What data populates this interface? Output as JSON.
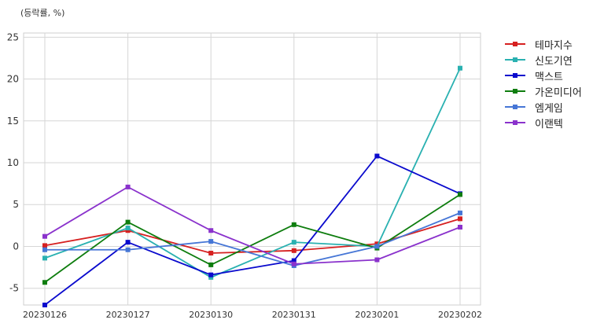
{
  "unit_label": "(등락률, %)",
  "chart_data": {
    "type": "line",
    "x": [
      "20230126",
      "20230127",
      "20230130",
      "20230131",
      "20230201",
      "20230202"
    ],
    "ylim": [
      -7,
      25.5
    ],
    "yticks": [
      -5,
      0,
      5,
      10,
      15,
      20,
      25
    ],
    "grid": true,
    "legend_position": "top-right, outside plot",
    "series": [
      {
        "name": "테마지수",
        "color": "#d62020",
        "values": [
          0.1,
          1.9,
          -0.8,
          -0.5,
          0.3,
          3.3
        ]
      },
      {
        "name": "신도기연",
        "color": "#2ab1b1",
        "values": [
          -1.4,
          2.2,
          -3.7,
          0.5,
          0.0,
          21.3
        ]
      },
      {
        "name": "맥스트",
        "color": "#0a0acd",
        "values": [
          -7.0,
          0.5,
          -3.4,
          -1.7,
          10.8,
          6.3
        ]
      },
      {
        "name": "가온미디어",
        "color": "#0e7d0e",
        "values": [
          -4.3,
          2.9,
          -2.2,
          2.6,
          -0.2,
          6.2
        ]
      },
      {
        "name": "엠게임",
        "color": "#4676d6",
        "values": [
          -0.4,
          -0.4,
          0.6,
          -2.3,
          0.0,
          4.0
        ]
      },
      {
        "name": "이랜텍",
        "color": "#8a32cc",
        "values": [
          1.2,
          7.1,
          1.9,
          -2.1,
          -1.6,
          2.3
        ]
      }
    ]
  }
}
